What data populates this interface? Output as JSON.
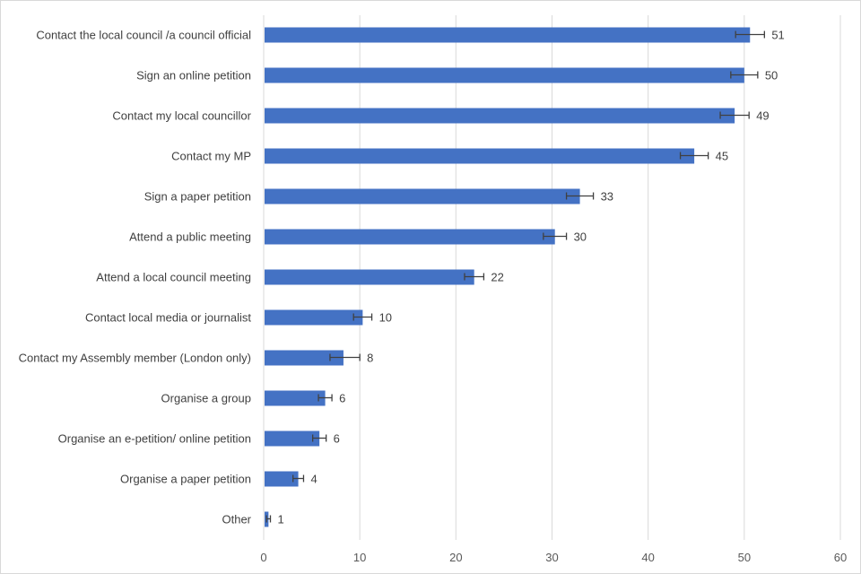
{
  "chart_data": {
    "type": "bar",
    "orientation": "horizontal",
    "title": "",
    "xlabel": "",
    "ylabel": "",
    "xlim": [
      0,
      60
    ],
    "xticks": [
      0,
      10,
      20,
      30,
      40,
      50,
      60
    ],
    "grid": true,
    "bar_color": "#4472C4",
    "categories": [
      "Contact the local council /a council official",
      "Sign an online petition",
      "Contact my local councillor",
      "Contact my MP",
      "Sign a paper petition",
      "Attend a public meeting",
      "Attend a local council meeting",
      "Contact local media or journalist",
      "Contact my Assembly member (London only)",
      "Organise a group",
      "Organise an e-petition/ online petition",
      "Organise a paper petition",
      "Other"
    ],
    "values": [
      50.6,
      50.0,
      49.0,
      44.8,
      32.9,
      30.3,
      21.9,
      10.3,
      8.3,
      6.4,
      5.8,
      3.6,
      0.5
    ],
    "data_labels": [
      "51",
      "50",
      "49",
      "45",
      "33",
      "30",
      "22",
      "10",
      "8",
      "6",
      "6",
      "4",
      "1"
    ],
    "error_low": [
      1.5,
      1.4,
      1.5,
      1.45,
      1.4,
      1.2,
      1.0,
      0.95,
      1.4,
      0.7,
      0.7,
      0.55,
      0.2
    ],
    "error_high": [
      1.5,
      1.4,
      1.5,
      1.45,
      1.4,
      1.2,
      1.0,
      0.95,
      1.7,
      0.7,
      0.7,
      0.55,
      0.2
    ]
  }
}
